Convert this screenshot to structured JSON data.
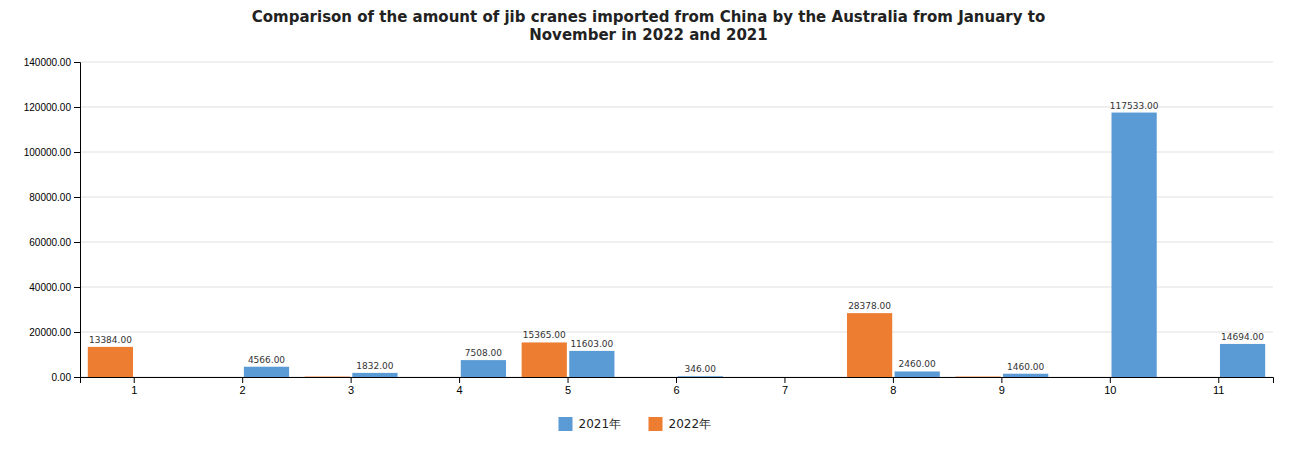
{
  "chart_data": {
    "type": "bar",
    "title": "Comparison of the amount of jib cranes imported from China by the Australia from January to\nNovember in 2022 and 2021",
    "categories": [
      "1",
      "2",
      "3",
      "4",
      "5",
      "6",
      "7",
      "8",
      "9",
      "10",
      "11"
    ],
    "series": [
      {
        "name": "2022年",
        "color": "#ED7D31",
        "values": [
          13384,
          0,
          200,
          0,
          15365,
          0,
          0,
          28378,
          200,
          0,
          0
        ],
        "value_labels": [
          "13384.00",
          null,
          null,
          null,
          "15365.00",
          null,
          null,
          "28378.00",
          null,
          null,
          null
        ]
      },
      {
        "name": "2021年",
        "color": "#5B9BD5",
        "values": [
          0,
          4566,
          1832,
          7508,
          11603,
          346,
          0,
          2460,
          1460,
          117533,
          14694
        ],
        "value_labels": [
          null,
          "4566.00",
          "1832.00",
          "7508.00",
          "11603.00",
          "346.00",
          null,
          "2460.00",
          "1460.00",
          "117533.00",
          "14694.00"
        ]
      }
    ],
    "ylim": [
      0,
      140000
    ],
    "yticks": [
      {
        "value": 0,
        "label": "0.00"
      },
      {
        "value": 20000,
        "label": "20000.00"
      },
      {
        "value": 40000,
        "label": "40000.00"
      },
      {
        "value": 60000,
        "label": "60000.00"
      },
      {
        "value": 80000,
        "label": "80000.00"
      },
      {
        "value": 100000,
        "label": "100000.00"
      },
      {
        "value": 120000,
        "label": "120000.00"
      },
      {
        "value": 140000,
        "label": "140000.00"
      }
    ],
    "grid": true,
    "data_labels": true,
    "legend": "bottom"
  }
}
